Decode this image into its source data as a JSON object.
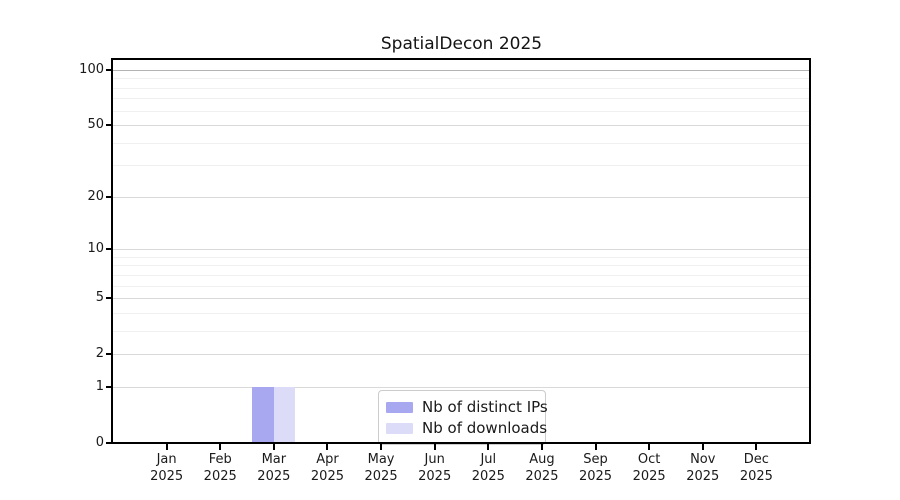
{
  "title": "SpatialDecon 2025",
  "chart_data": {
    "type": "bar",
    "title": "SpatialDecon 2025",
    "categories": [
      "Jan 2025",
      "Feb 2025",
      "Mar 2025",
      "Apr 2025",
      "May 2025",
      "Jun 2025",
      "Jul 2025",
      "Aug 2025",
      "Sep 2025",
      "Oct 2025",
      "Nov 2025",
      "Dec 2025"
    ],
    "series": [
      {
        "name": "Nb of distinct IPs",
        "values": [
          0,
          0,
          1,
          0,
          0,
          0,
          0,
          0,
          0,
          0,
          0,
          0
        ],
        "color": "#a8a8f0"
      },
      {
        "name": "Nb of downloads",
        "values": [
          0,
          0,
          1,
          0,
          0,
          0,
          0,
          0,
          0,
          0,
          0,
          0
        ],
        "color": "#dcdcf8"
      }
    ],
    "xlabel": "",
    "ylabel": "",
    "yscale": "log1p",
    "ylim": [
      0,
      113
    ],
    "yticks": [
      0,
      1,
      2,
      5,
      10,
      20,
      50,
      100
    ],
    "yticks_minor": [
      3,
      4,
      6,
      7,
      8,
      9,
      30,
      40,
      60,
      70,
      80,
      90
    ],
    "grid": true,
    "legend_position": "lower center"
  },
  "legend": {
    "items": [
      {
        "label": "Nb of distinct IPs"
      },
      {
        "label": "Nb of downloads"
      }
    ]
  },
  "colors": {
    "background": "#ffffff",
    "spine": "#000000",
    "text": "#1a1a1a",
    "grid_major": "#d9d9d9",
    "grid_minor": "#f0f0f0",
    "grid_emphasis": "#b3b3b3",
    "bar_distinct_ips": "#a8a8f0",
    "bar_downloads": "#dcdcf8",
    "legend_border": "#cccccc"
  }
}
